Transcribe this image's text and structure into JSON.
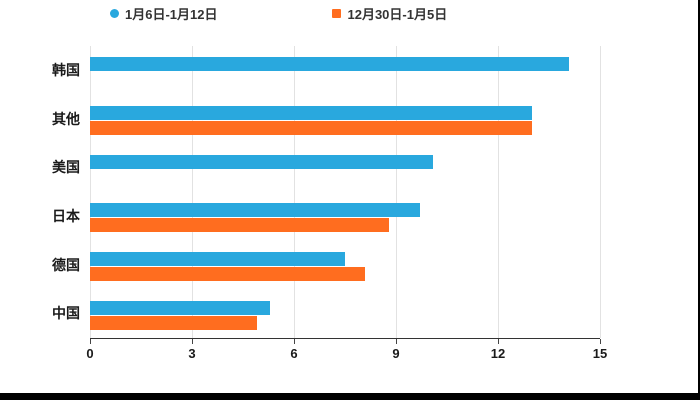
{
  "legend": [
    {
      "label": "1月6日-1月12日",
      "color": "#29a8de",
      "marker": "circle"
    },
    {
      "label": "12月30日-1月5日",
      "color": "#ff6d1f",
      "marker": "square"
    }
  ],
  "chart_data": {
    "type": "bar",
    "orientation": "horizontal",
    "title": "",
    "categories": [
      "韩国",
      "其他",
      "美国",
      "日本",
      "德国",
      "中国"
    ],
    "series": [
      {
        "name": "1月6日-1月12日",
        "color": "#29a8de",
        "values": [
          14.1,
          13.0,
          10.1,
          9.7,
          7.5,
          5.3
        ]
      },
      {
        "name": "12月30日-1月5日",
        "color": "#ff6d1f",
        "values": [
          0,
          13.0,
          0,
          8.8,
          8.1,
          4.9
        ]
      }
    ],
    "xlim": [
      0,
      15
    ],
    "xticks": [
      0,
      3,
      6,
      9,
      12,
      15
    ],
    "grid": true,
    "legend_position": "top"
  }
}
